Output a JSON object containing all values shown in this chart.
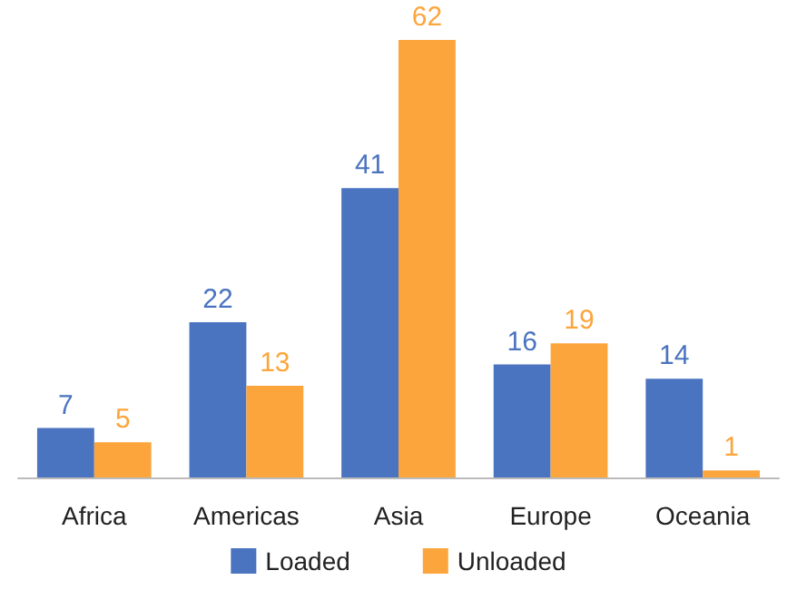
{
  "chart_data": {
    "type": "bar",
    "categories": [
      "Africa",
      "Americas",
      "Asia",
      "Europe",
      "Oceania"
    ],
    "series": [
      {
        "name": "Loaded",
        "color": "#4a73c0",
        "values": [
          7,
          22,
          41,
          16,
          14
        ]
      },
      {
        "name": "Unloaded",
        "color": "#fca53c",
        "values": [
          5,
          13,
          62,
          19,
          1
        ]
      }
    ],
    "data_labels": true,
    "legend": "bottom"
  }
}
